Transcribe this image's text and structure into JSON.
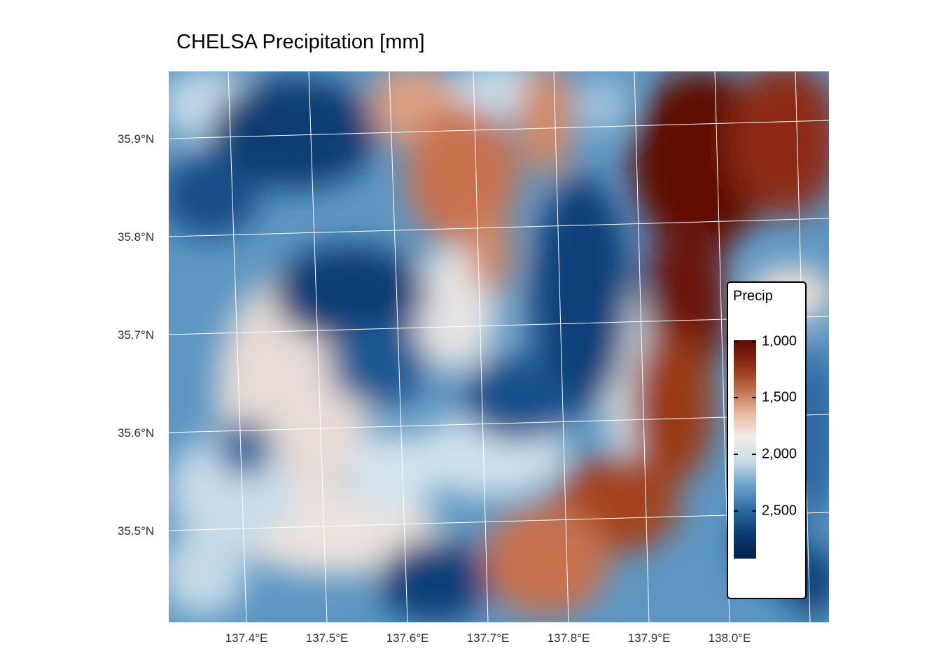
{
  "title": "CHELSA Precipitation [mm]",
  "map": {
    "lat_labels": [
      "35.9°N",
      "35.8°N",
      "35.7°N",
      "35.6°N",
      "35.5°N"
    ],
    "lon_labels": [
      "137.4°E",
      "137.5°E",
      "137.6°E",
      "137.7°E",
      "137.8°E",
      "137.9°E",
      "138.0°E"
    ],
    "graticule_color": "#ffffff"
  },
  "legend": {
    "title": "Precip",
    "ticks": [
      "1,000",
      "1,500",
      "2,000",
      "2,500"
    ],
    "colors": [
      "#5a0b06",
      "#8c2d10",
      "#c06a45",
      "#e7b9a0",
      "#f2ece8",
      "#c5dbe8",
      "#6aa3c7",
      "#2b6aa2",
      "#0b3a70",
      "#06224f"
    ]
  }
}
